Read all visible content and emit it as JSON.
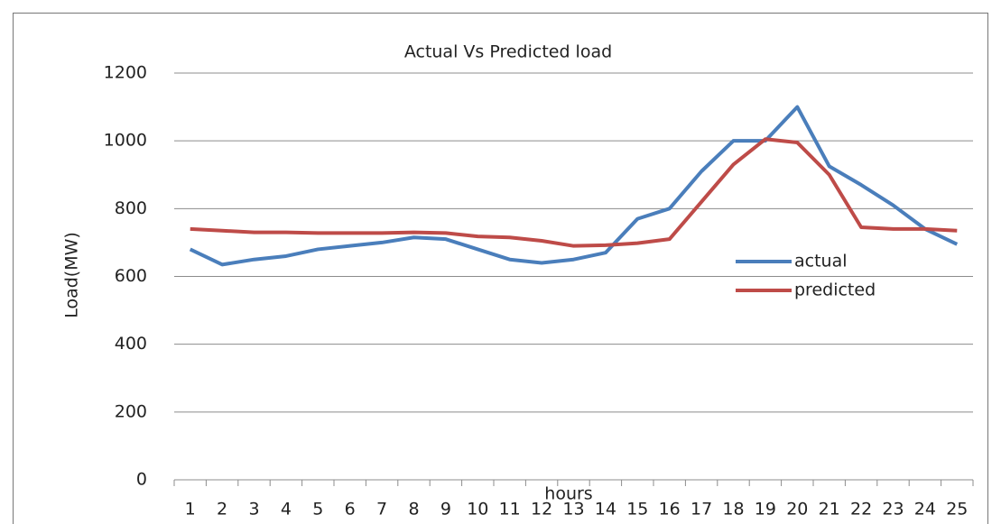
{
  "chart_data": {
    "type": "line",
    "title": "Actual Vs Predicted load",
    "y_label": "Load(MW)",
    "x_label": "hours",
    "categories": [
      "1",
      "2",
      "3",
      "4",
      "5",
      "6",
      "7",
      "8",
      "9",
      "10",
      "11",
      "12",
      "13",
      "14",
      "15",
      "16",
      "17",
      "18",
      "19",
      "20",
      "21",
      "22",
      "23",
      "24",
      "25"
    ],
    "series": [
      {
        "name": "actual",
        "color": "#4a7ebb",
        "values": [
          680,
          635,
          650,
          660,
          680,
          690,
          700,
          715,
          710,
          680,
          650,
          640,
          650,
          670,
          770,
          800,
          910,
          1000,
          1000,
          1100,
          925,
          870,
          810,
          740,
          695
        ]
      },
      {
        "name": "predicted",
        "color": "#be4b48",
        "values": [
          740,
          735,
          730,
          730,
          728,
          728,
          728,
          730,
          728,
          718,
          715,
          705,
          690,
          692,
          698,
          710,
          820,
          930,
          1005,
          995,
          900,
          745,
          740,
          740,
          735
        ]
      }
    ],
    "ylim": [
      0,
      1200
    ],
    "yticks": [
      0,
      200,
      400,
      600,
      800,
      1000,
      1200
    ],
    "grid": true,
    "legend": "right"
  }
}
